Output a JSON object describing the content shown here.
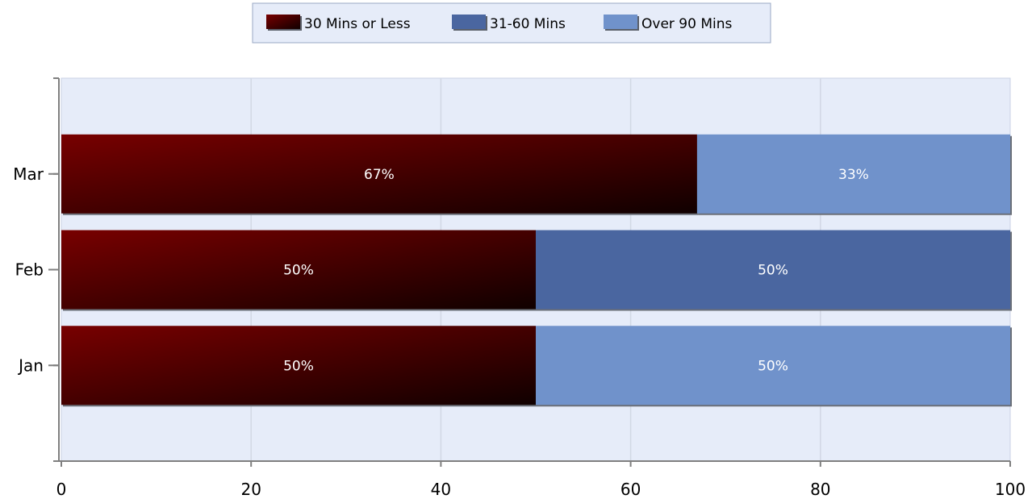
{
  "chart_data": {
    "type": "bar",
    "orientation": "horizontal",
    "stacked": true,
    "categories": [
      "Jan",
      "Feb",
      "Mar"
    ],
    "series": [
      {
        "name": "30 Mins or Less",
        "values": [
          50,
          50,
          67
        ],
        "labels": [
          "50%",
          "50%",
          "67%"
        ],
        "color": "#6e0000"
      },
      {
        "name": "31-60 Mins",
        "values": [
          0,
          50,
          0
        ],
        "labels": [
          "",
          "50%",
          ""
        ],
        "color": "#4a66a0"
      },
      {
        "name": "Over 90 Mins",
        "values": [
          50,
          0,
          33
        ],
        "labels": [
          "50%",
          "",
          "33%"
        ],
        "color": "#7092cb"
      }
    ],
    "xlim": [
      0,
      100
    ],
    "xticks": [
      0,
      20,
      40,
      60,
      80,
      100
    ],
    "xtick_labels": [
      "0",
      "20",
      "40",
      "60",
      "80",
      "100"
    ],
    "grid": true,
    "legend_position": "top-center",
    "plot_background": "#e6ecf9"
  }
}
